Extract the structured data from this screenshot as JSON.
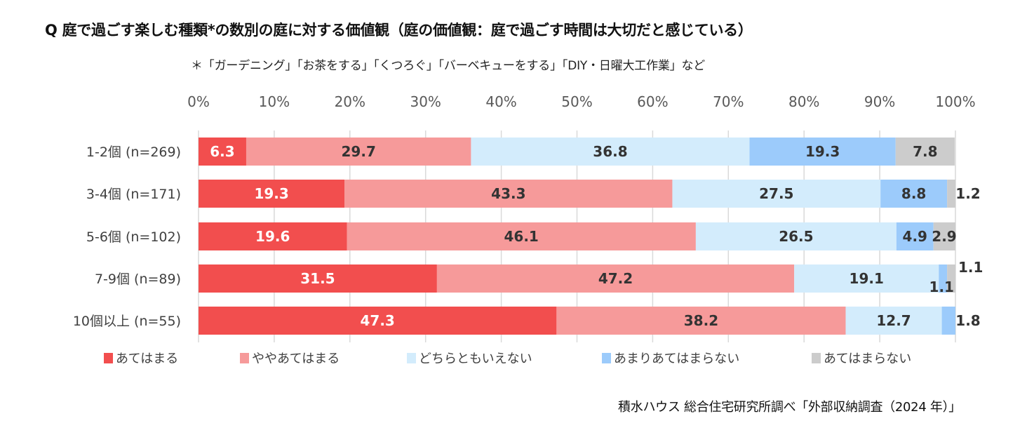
{
  "chart_data": {
    "type": "bar",
    "orientation": "horizontal",
    "stacked": "100%",
    "title": "Q 庭で過ごす楽しむ種類*の数別の庭に対する価値観（庭の価値観：庭で過ごす時間は大切だと感じている）",
    "subtitle": "＊「ガーデニング」「お茶をする」「くつろぐ」「バーベキューをする」「DIY・日曜大工作業」など",
    "source": "積水ハウス 総合住宅研究所調べ「外部収納調査（2024 年）」",
    "xlabel": "",
    "ylabel": "",
    "xlim": [
      0,
      100
    ],
    "x_ticks": [
      "0%",
      "10%",
      "20%",
      "30%",
      "40%",
      "50%",
      "60%",
      "70%",
      "80%",
      "90%",
      "100%"
    ],
    "x_axis_position": "top",
    "grid": true,
    "legend_position": "bottom",
    "categories": [
      "1-2個 (n=269)",
      "3-4個 (n=171)",
      "5-6個 (n=102)",
      "7-9個 (n=89)",
      "10個以上 (n=55)"
    ],
    "series": [
      {
        "name": "あてはまる",
        "color": "#f24e4e",
        "label_color": "#ffffff",
        "values": [
          6.3,
          19.3,
          19.6,
          31.5,
          47.3
        ]
      },
      {
        "name": "ややあてはまる",
        "color": "#f69a9a",
        "label_color": "#333333",
        "values": [
          29.7,
          43.3,
          46.1,
          47.2,
          38.2
        ]
      },
      {
        "name": "どちらともいえない",
        "color": "#d3ecfc",
        "label_color": "#333333",
        "values": [
          36.8,
          27.5,
          26.5,
          19.1,
          12.7
        ]
      },
      {
        "name": "あまりあてはまらない",
        "color": "#9ccbfb",
        "label_color": "#333333",
        "values": [
          19.3,
          8.8,
          4.9,
          1.1,
          1.8
        ]
      },
      {
        "name": "あてはまらない",
        "color": "#cccccc",
        "label_color": "#333333",
        "values": [
          7.8,
          1.2,
          2.9,
          1.1,
          null
        ]
      }
    ],
    "data_labels": [
      [
        "6.3",
        "29.7",
        "36.8",
        "19.3",
        "7.8"
      ],
      [
        "19.3",
        "43.3",
        "27.5",
        "8.8",
        "1.2"
      ],
      [
        "19.6",
        "46.1",
        "26.5",
        "4.9",
        "2.9"
      ],
      [
        "31.5",
        "47.2",
        "19.1",
        "1.1",
        "1.1"
      ],
      [
        "47.3",
        "38.2",
        "12.7",
        "1.8",
        null
      ]
    ]
  }
}
